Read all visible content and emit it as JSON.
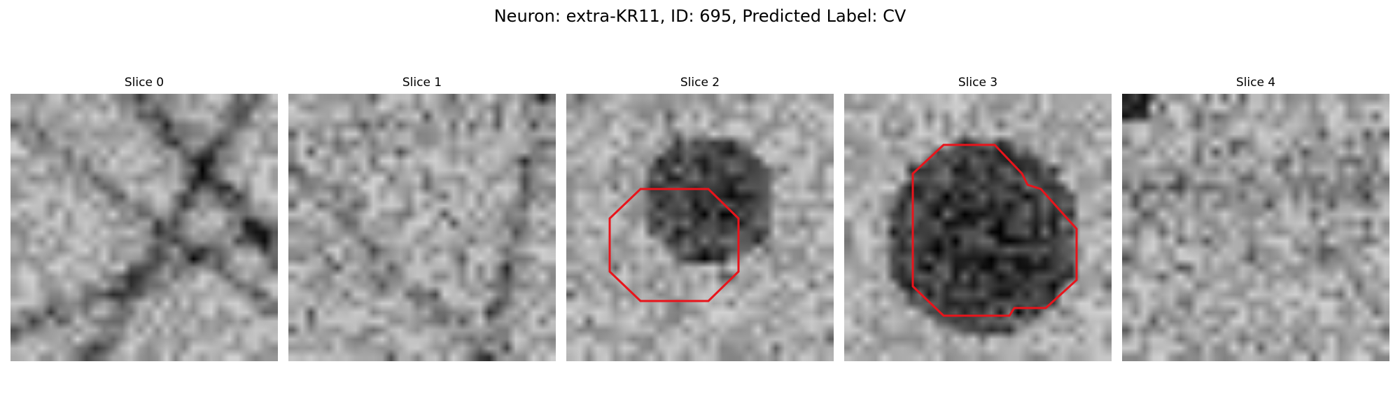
{
  "title": "Neuron: extra-KR11, ID: 695, Predicted Label: CV",
  "contour_color": "#e8141b",
  "slices": [
    {
      "title": "Slice 0",
      "has_contour": false
    },
    {
      "title": "Slice 1",
      "has_contour": false
    },
    {
      "title": "Slice 2",
      "has_contour": true
    },
    {
      "title": "Slice 3",
      "has_contour": true
    },
    {
      "title": "Slice 4",
      "has_contour": false
    }
  ]
}
